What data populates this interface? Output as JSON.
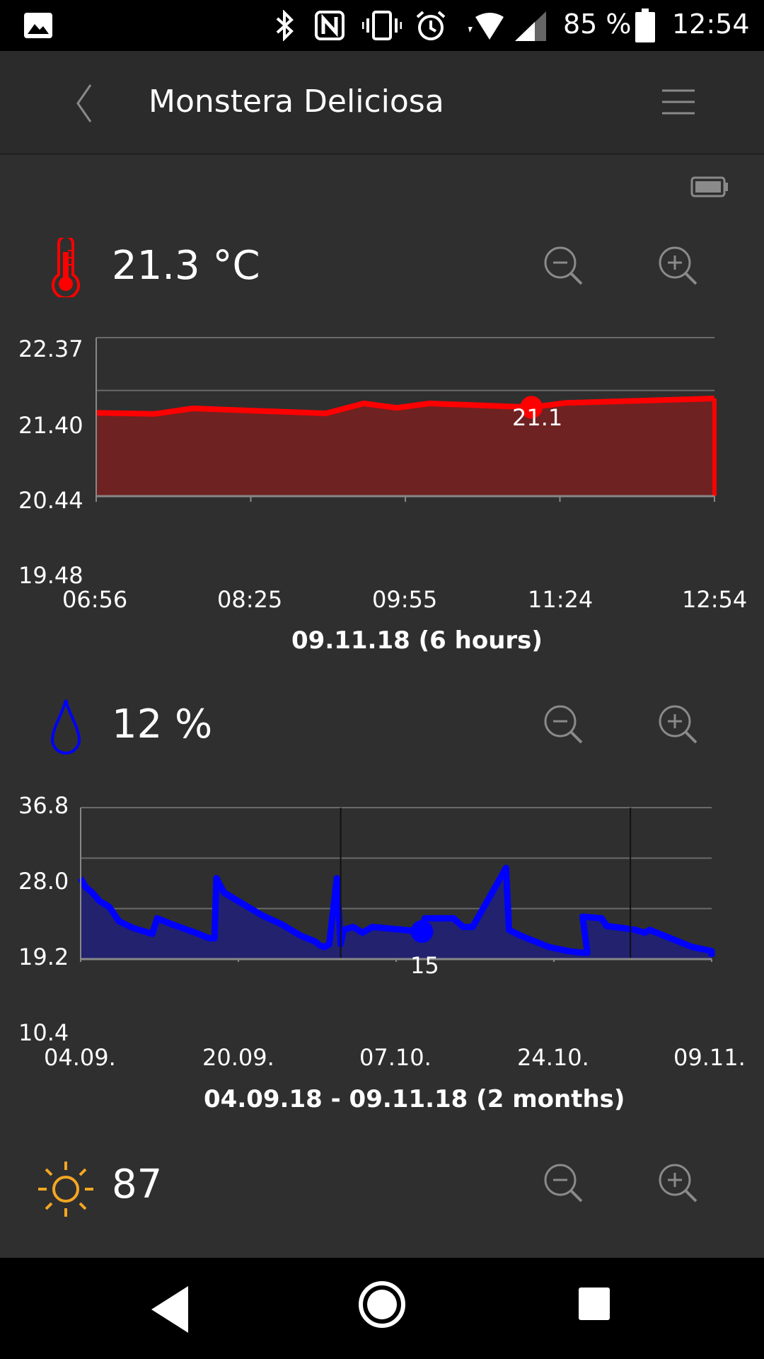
{
  "status_bar": {
    "battery_percent": "85 %",
    "time": "12:54",
    "icons": [
      "image-icon",
      "bluetooth-icon",
      "nfc-icon",
      "vibrate-icon",
      "alarm-icon",
      "wifi-icon",
      "signal-icon",
      "battery-icon"
    ]
  },
  "app_bar": {
    "title": "Monstera Deliciosa",
    "back_icon": "back-chevron-icon",
    "menu_icon": "hamburger-menu-icon"
  },
  "device_battery_icon": "sensor-battery-icon",
  "colors": {
    "background": "#2f2f2f",
    "temperature": "#ff0000",
    "temperature_fill": "#6e2222",
    "moisture": "#0000ff",
    "moisture_fill": "#22226e",
    "light": "#f5a623",
    "icon_gray": "#8a8a8a"
  },
  "temperature": {
    "reading": "21.3 °C",
    "icon": "thermometer-icon",
    "zoom_out_icon": "zoom-out-icon",
    "zoom_in_icon": "zoom-in-icon",
    "chart_data": {
      "type": "area",
      "x_ticks": [
        "06:56",
        "08:25",
        "09:55",
        "11:24",
        "12:54"
      ],
      "y_ticks": [
        "22.37",
        "21.40",
        "20.44",
        "19.48"
      ],
      "ylim": [
        19.48,
        22.37
      ],
      "xlim_minutes": [
        0,
        358
      ],
      "caption": "09.11.18 (6 hours)",
      "highlight": {
        "x": 252,
        "y": 21.1,
        "label": "21.1"
      },
      "points": [
        [
          0,
          21.0
        ],
        [
          34,
          20.98
        ],
        [
          56,
          21.08
        ],
        [
          133,
          20.99
        ],
        [
          155,
          21.17
        ],
        [
          174,
          21.09
        ],
        [
          193,
          21.17
        ],
        [
          252,
          21.1
        ],
        [
          272,
          21.18
        ],
        [
          358,
          21.26
        ]
      ]
    }
  },
  "moisture": {
    "reading": "12 %",
    "icon": "water-drop-icon",
    "zoom_out_icon": "zoom-out-icon",
    "zoom_in_icon": "zoom-in-icon",
    "chart_data": {
      "type": "area",
      "x_ticks": [
        "04.09.",
        "20.09.",
        "07.10.",
        "24.10.",
        "09.11."
      ],
      "y_ticks": [
        "36.8",
        "28.0",
        "19.2",
        "10.4"
      ],
      "ylim": [
        10.4,
        36.8
      ],
      "xlim_days": [
        0,
        66
      ],
      "caption": "04.09.18 - 09.11.18 (2 months)",
      "highlight": {
        "x": 35.7,
        "y": 15.2,
        "label": "15"
      },
      "points": [
        [
          0,
          24.5
        ],
        [
          0.5,
          23.0
        ],
        [
          1.2,
          22.0
        ],
        [
          2,
          20.5
        ],
        [
          3,
          19.5
        ],
        [
          4,
          17
        ],
        [
          5.5,
          15.8
        ],
        [
          7.5,
          14.8
        ],
        [
          8,
          17.5
        ],
        [
          9.5,
          16.5
        ],
        [
          12,
          15
        ],
        [
          13.5,
          14
        ],
        [
          14,
          14.0
        ],
        [
          14.2,
          24.5
        ],
        [
          15,
          22.0
        ],
        [
          16,
          21.0
        ],
        [
          17.5,
          19.5
        ],
        [
          19,
          18.0
        ],
        [
          21,
          16.5
        ],
        [
          23,
          14.5
        ],
        [
          24.5,
          13.5
        ],
        [
          25,
          12.8
        ],
        [
          25.5,
          12.5
        ],
        [
          26,
          13.0
        ],
        [
          26.8,
          24.5
        ],
        [
          27.2,
          13.0
        ],
        [
          27.5,
          15.5
        ],
        [
          28.5,
          16.0
        ],
        [
          29.5,
          15.0
        ],
        [
          30.5,
          16.0
        ],
        [
          35.7,
          15.2
        ],
        [
          36,
          17.5
        ],
        [
          39,
          17.5
        ],
        [
          40,
          16.0
        ],
        [
          41,
          16.0
        ],
        [
          44.5,
          26.3
        ],
        [
          44.8,
          15.5
        ],
        [
          46,
          14.5
        ],
        [
          47.5,
          13.5
        ],
        [
          49,
          12.5
        ],
        [
          51,
          11.8
        ],
        [
          52.5,
          11.5
        ],
        [
          53,
          11.5
        ],
        [
          52.5,
          17.8
        ],
        [
          54.5,
          17.5
        ],
        [
          55,
          16.2
        ],
        [
          58,
          15.5
        ],
        [
          59,
          15.0
        ],
        [
          59.5,
          15.5
        ],
        [
          61,
          14.5
        ],
        [
          62.5,
          13.5
        ],
        [
          64,
          12.5
        ],
        [
          66,
          11.8
        ],
        [
          66,
          10.8
        ]
      ]
    }
  },
  "light": {
    "reading": "87",
    "icon": "sun-icon",
    "zoom_out_icon": "zoom-out-icon",
    "zoom_in_icon": "zoom-in-icon"
  },
  "nav_bar": {
    "back_icon": "nav-back-icon",
    "home_icon": "nav-home-icon",
    "recents_icon": "nav-recents-icon"
  }
}
